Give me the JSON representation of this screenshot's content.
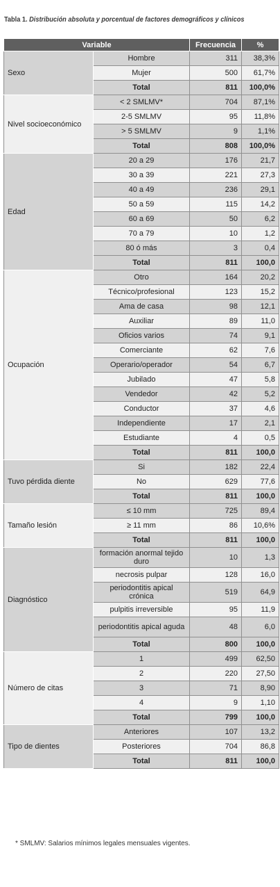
{
  "caption": {
    "label": "Tabla 1.",
    "text": "Distribución absoluta y porcentual de factores demográficos y clínicos"
  },
  "headers": {
    "variable": "Variable",
    "frecuencia": "Frecuencia",
    "percent": "%"
  },
  "groups": [
    {
      "name": "Sexo",
      "rows": [
        {
          "label": "Hombre",
          "freq": "311",
          "pct": "38,3%"
        },
        {
          "label": "Mujer",
          "freq": "500",
          "pct": "61,7%"
        },
        {
          "label": "Total",
          "freq": "811",
          "pct": "100,0%",
          "total": true
        }
      ]
    },
    {
      "name": "Nivel socioeconómico",
      "rows": [
        {
          "label": "< 2 SMLMV*",
          "freq": "704",
          "pct": "87,1%"
        },
        {
          "label": "2-5 SMLMV",
          "freq": "95",
          "pct": "11,8%"
        },
        {
          "label": "> 5 SMLMV",
          "freq": "9",
          "pct": "1,1%"
        },
        {
          "label": "Total",
          "freq": "808",
          "pct": "100,0%",
          "total": true
        }
      ]
    },
    {
      "name": "Edad",
      "rows": [
        {
          "label": "20 a 29",
          "freq": "176",
          "pct": "21,7"
        },
        {
          "label": "30 a 39",
          "freq": "221",
          "pct": "27,3"
        },
        {
          "label": "40 a 49",
          "freq": "236",
          "pct": "29,1"
        },
        {
          "label": "50 a 59",
          "freq": "115",
          "pct": "14,2"
        },
        {
          "label": "60 a 69",
          "freq": "50",
          "pct": "6,2"
        },
        {
          "label": "70 a 79",
          "freq": "10",
          "pct": "1,2"
        },
        {
          "label": "80 ó más",
          "freq": "3",
          "pct": "0,4"
        },
        {
          "label": "Total",
          "freq": "811",
          "pct": "100,0",
          "total": true
        }
      ]
    },
    {
      "name": "Ocupación",
      "rows": [
        {
          "label": "Otro",
          "freq": "164",
          "pct": "20,2"
        },
        {
          "label": "Técnico/profesional",
          "freq": "123",
          "pct": "15,2"
        },
        {
          "label": "Ama de casa",
          "freq": "98",
          "pct": "12,1"
        },
        {
          "label": "Auxiliar",
          "freq": "89",
          "pct": "11,0"
        },
        {
          "label": "Oficios varios",
          "freq": "74",
          "pct": "9,1"
        },
        {
          "label": "Comerciante",
          "freq": "62",
          "pct": "7,6"
        },
        {
          "label": "Operario/operador",
          "freq": "54",
          "pct": "6,7"
        },
        {
          "label": "Jubilado",
          "freq": "47",
          "pct": "5,8"
        },
        {
          "label": "Vendedor",
          "freq": "42",
          "pct": "5,2"
        },
        {
          "label": "Conductor",
          "freq": "37",
          "pct": "4,6"
        },
        {
          "label": "Independiente",
          "freq": "17",
          "pct": "2,1"
        },
        {
          "label": "Estudiante",
          "freq": "4",
          "pct": "0,5"
        },
        {
          "label": "Total",
          "freq": "811",
          "pct": "100,0",
          "total": true
        }
      ]
    },
    {
      "name": "Tuvo pérdida diente",
      "rows": [
        {
          "label": "Si",
          "freq": "182",
          "pct": "22,4"
        },
        {
          "label": "No",
          "freq": "629",
          "pct": "77,6"
        },
        {
          "label": "Total",
          "freq": "811",
          "pct": "100,0",
          "total": true
        }
      ]
    },
    {
      "name": "Tamaño lesión",
      "rows": [
        {
          "label": "≤ 10 mm",
          "freq": "725",
          "pct": "89,4"
        },
        {
          "label": "≥ 11 mm",
          "freq": "86",
          "pct": "10,6%"
        },
        {
          "label": "Total",
          "freq": "811",
          "pct": "100,0",
          "total": true
        }
      ]
    },
    {
      "name": "Diagnóstico",
      "rows": [
        {
          "label": "formación anormal tejido duro",
          "freq": "10",
          "pct": "1,3",
          "tall": true
        },
        {
          "label": "necrosis pulpar",
          "freq": "128",
          "pct": "16,0"
        },
        {
          "label": "periodontitis apical crónica",
          "freq": "519",
          "pct": "64,9",
          "tall": true
        },
        {
          "label": "pulpitis irreversible",
          "freq": "95",
          "pct": "11,9"
        },
        {
          "label": "periodontitis apical aguda",
          "freq": "48",
          "pct": "6,0",
          "tall": true
        },
        {
          "label": "Total",
          "freq": "800",
          "pct": "100,0",
          "total": true
        }
      ]
    },
    {
      "name": "Número de citas",
      "rows": [
        {
          "label": "1",
          "freq": "499",
          "pct": "62,50"
        },
        {
          "label": "2",
          "freq": "220",
          "pct": "27,50"
        },
        {
          "label": "3",
          "freq": "71",
          "pct": "8,90"
        },
        {
          "label": "4",
          "freq": "9",
          "pct": "1,10"
        },
        {
          "label": "Total",
          "freq": "799",
          "pct": "100,0",
          "total": true
        }
      ]
    },
    {
      "name": "Tipo de dientes",
      "rows": [
        {
          "label": "Anteriores",
          "freq": "107",
          "pct": "13,2"
        },
        {
          "label": "Posteriores",
          "freq": "704",
          "pct": "86,8"
        },
        {
          "label": "Total",
          "freq": "811",
          "pct": "100,0",
          "total": true
        }
      ]
    }
  ],
  "footnote": "* SMLMV: Salarios mínimos legales mensuales vigentes."
}
